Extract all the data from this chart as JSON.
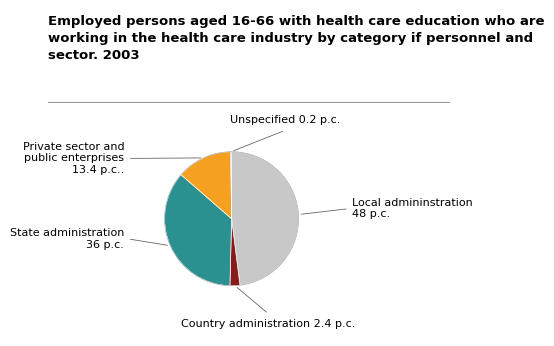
{
  "title": "Employed persons aged 16-66 with health care education who are\nworking in the health care industry by category if personnel and\nsector. 2003",
  "slices": [
    {
      "label": "Local admininstration\n48 p.c.",
      "value": 48,
      "color": "#c8c8c8"
    },
    {
      "label": "Country administration 2.4 p.c.",
      "value": 2.4,
      "color": "#8b1a1a"
    },
    {
      "label": "State administration\n36 p.c.",
      "value": 36,
      "color": "#2a9090"
    },
    {
      "label": "Private sector and\npublic enterprises\n13.4 p.c..",
      "value": 13.4,
      "color": "#f5a020"
    },
    {
      "label": "Unspecified 0.2 p.c.",
      "value": 0.2,
      "color": "#2a3a7a"
    }
  ],
  "background_color": "#ffffff",
  "title_fontsize": 9.5,
  "label_fontsize": 8
}
